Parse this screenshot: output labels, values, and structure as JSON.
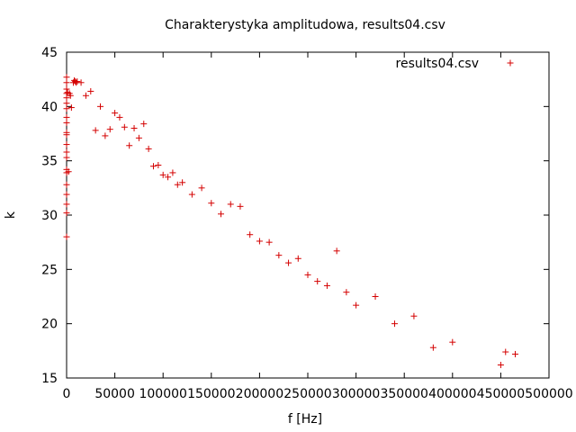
{
  "chart_data": {
    "type": "scatter",
    "title": "Charakterystyka amplitudowa, results04.csv",
    "xlabel": "f [Hz]",
    "ylabel": "k",
    "xlim": [
      0,
      500000
    ],
    "ylim": [
      15,
      45
    ],
    "grid": false,
    "legend": "top-right",
    "xticks": [
      0,
      50000,
      100000,
      150000,
      200000,
      250000,
      300000,
      350000,
      400000,
      450000,
      500000
    ],
    "yticks": [
      15,
      20,
      25,
      30,
      35,
      40,
      45
    ],
    "colors": {
      "series": "#d40000",
      "axes": "#000000"
    },
    "series": [
      {
        "name": "results04.csv",
        "points": [
          [
            0,
            42.7
          ],
          [
            0,
            42.2
          ],
          [
            0,
            41.6
          ],
          [
            0,
            41.2
          ],
          [
            0,
            40.8
          ],
          [
            0,
            40.3
          ],
          [
            0,
            39.8
          ],
          [
            0,
            39.0
          ],
          [
            0,
            38.5
          ],
          [
            0,
            37.6
          ],
          [
            0,
            37.4
          ],
          [
            0,
            36.5
          ],
          [
            0,
            35.8
          ],
          [
            0,
            35.3
          ],
          [
            0,
            34.2
          ],
          [
            0,
            33.9
          ],
          [
            0,
            32.8
          ],
          [
            0,
            31.9
          ],
          [
            0,
            31.0
          ],
          [
            0,
            30.2
          ],
          [
            0,
            28.0
          ],
          [
            1000,
            41.3
          ],
          [
            2000,
            34.0
          ],
          [
            3000,
            41.2
          ],
          [
            4000,
            41.0
          ],
          [
            5000,
            39.9
          ],
          [
            7000,
            42.2
          ],
          [
            8000,
            42.4
          ],
          [
            9000,
            42.3
          ],
          [
            10000,
            42.2
          ],
          [
            11000,
            42.3
          ],
          [
            15000,
            42.2
          ],
          [
            20000,
            41.0
          ],
          [
            25000,
            41.4
          ],
          [
            30000,
            37.8
          ],
          [
            35000,
            40.0
          ],
          [
            40000,
            37.3
          ],
          [
            45000,
            37.9
          ],
          [
            50000,
            39.4
          ],
          [
            55000,
            39.0
          ],
          [
            60000,
            38.1
          ],
          [
            65000,
            36.4
          ],
          [
            70000,
            38.0
          ],
          [
            75000,
            37.1
          ],
          [
            80000,
            38.4
          ],
          [
            85000,
            36.1
          ],
          [
            90000,
            34.5
          ],
          [
            95000,
            34.6
          ],
          [
            100000,
            33.7
          ],
          [
            105000,
            33.5
          ],
          [
            110000,
            33.9
          ],
          [
            115000,
            32.8
          ],
          [
            120000,
            33.0
          ],
          [
            130000,
            31.9
          ],
          [
            140000,
            32.5
          ],
          [
            150000,
            31.1
          ],
          [
            160000,
            30.1
          ],
          [
            170000,
            31.0
          ],
          [
            180000,
            30.8
          ],
          [
            190000,
            28.2
          ],
          [
            200000,
            27.6
          ],
          [
            210000,
            27.5
          ],
          [
            220000,
            26.3
          ],
          [
            230000,
            25.6
          ],
          [
            240000,
            26.0
          ],
          [
            250000,
            24.5
          ],
          [
            260000,
            23.9
          ],
          [
            270000,
            23.5
          ],
          [
            280000,
            26.7
          ],
          [
            290000,
            22.9
          ],
          [
            300000,
            21.7
          ],
          [
            320000,
            22.5
          ],
          [
            340000,
            20.0
          ],
          [
            360000,
            20.7
          ],
          [
            380000,
            17.8
          ],
          [
            400000,
            18.3
          ],
          [
            450000,
            16.2
          ],
          [
            455000,
            17.4
          ],
          [
            465000,
            17.2
          ]
        ]
      }
    ]
  }
}
